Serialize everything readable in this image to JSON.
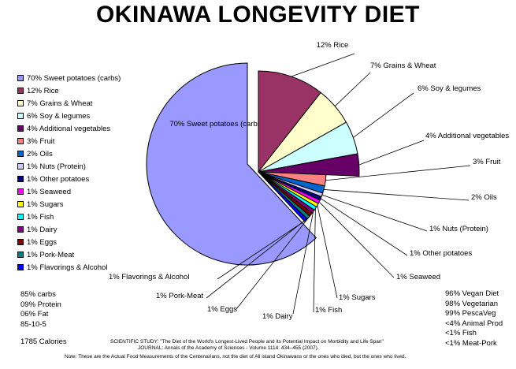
{
  "title": "OKINAWA LONGEVITY DIET",
  "chart_data": {
    "type": "pie",
    "title": "OKINAWA LONGEVITY DIET",
    "legend_position": "left",
    "slices": [
      {
        "label": "70% Sweet potatoes (carbs)",
        "value": 70,
        "color": "#9999ff"
      },
      {
        "label": "12% Rice",
        "value": 12,
        "color": "#993366"
      },
      {
        "label": "7% Grains & Wheat",
        "value": 7,
        "color": "#ffffcc"
      },
      {
        "label": "6% Soy & legumes",
        "value": 6,
        "color": "#ccffff"
      },
      {
        "label": "4% Additional vegetables",
        "value": 4,
        "color": "#660066"
      },
      {
        "label": "3% Fruit",
        "value": 3,
        "color": "#ff8080"
      },
      {
        "label": "2% Oils",
        "value": 2,
        "color": "#0066cc"
      },
      {
        "label": "1% Nuts (Protein)",
        "value": 1,
        "color": "#ccccff"
      },
      {
        "label": "1% Other potatoes",
        "value": 1,
        "color": "#000080"
      },
      {
        "label": "1% Seaweed",
        "value": 1,
        "color": "#ff00ff"
      },
      {
        "label": "1% Sugars",
        "value": 1,
        "color": "#ffff00"
      },
      {
        "label": "1% Fish",
        "value": 1,
        "color": "#00ffff"
      },
      {
        "label": "1% Dairy",
        "value": 1,
        "color": "#800080"
      },
      {
        "label": "1% Eggs",
        "value": 1,
        "color": "#800000"
      },
      {
        "label": "1% Pork-Meat",
        "value": 1,
        "color": "#008080"
      },
      {
        "label": "1% Flavorings & Alcohol",
        "value": 1,
        "color": "#0000ff"
      }
    ]
  },
  "stats_left": [
    "85% carbs",
    "09% Protein",
    "06% Fat",
    "85-10-5"
  ],
  "calories": "1785 Calories",
  "stats_right": [
    "96% Vegan Diet",
    "98% Vegetarian",
    "99% PescaVeg",
    "<4% Animal Prod",
    "<1% Fish",
    "<1% Meat-Pork"
  ],
  "study": "SCIENTIFIC STUDY: \"The Diet of the World's Longest-Lived People and its Potential Impact on Morbidity and Life Span\"",
  "journal": "JOURNAL: Annals of the Academy of Sciences - Volume 1114: 434–455 (2007).",
  "footnote": "Note: These are the Actual Food Measurements of the Centenarians, not the diet of All island Okinawans or the ones who died, but the ones who lived."
}
